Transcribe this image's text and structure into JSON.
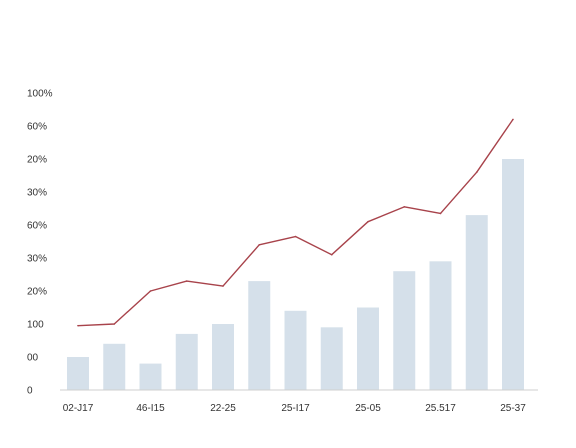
{
  "chart_data": {
    "type": "bar",
    "title": "",
    "xlabel": "",
    "ylabel": "",
    "y_tick_labels": [
      "0",
      "00",
      "100",
      "20%",
      "30%",
      "60%",
      "30%",
      "20%",
      "60%",
      "100%"
    ],
    "x_tick_labels": [
      "02-J17",
      "46-I15",
      "22-25",
      "25-I17",
      "25-05",
      "25.517",
      "25-37"
    ],
    "ylim": [
      0,
      9
    ],
    "grid": false,
    "legend": "none",
    "series": [
      {
        "type": "bar",
        "color": "#d5e0ea",
        "values": [
          1.0,
          1.4,
          0.8,
          1.7,
          2.0,
          3.3,
          2.4,
          1.9,
          2.5,
          3.6,
          3.9,
          5.3,
          7.0
        ]
      },
      {
        "type": "line",
        "color": "#a8434b",
        "values": [
          1.95,
          2.0,
          3.0,
          3.3,
          3.15,
          4.4,
          4.65,
          4.1,
          5.1,
          5.55,
          5.35,
          6.6,
          8.2
        ]
      }
    ]
  }
}
